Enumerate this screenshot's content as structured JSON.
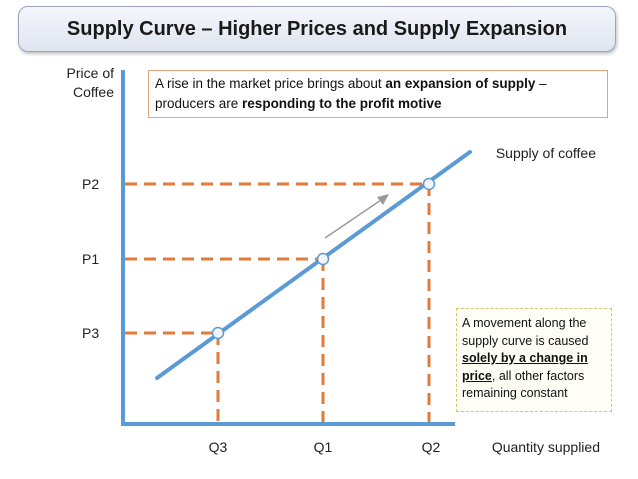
{
  "title": "Supply Curve – Higher Prices and Supply Expansion",
  "y_axis_label_line1": "Price of",
  "y_axis_label_line2": "Coffee",
  "x_axis_label": "Quantity supplied",
  "curve_label": "Supply of coffee",
  "top_note": {
    "part1": "A rise in the market price brings about ",
    "bold1": "an expansion of supply",
    "part2": " – producers are ",
    "bold2": "responding to the profit motive"
  },
  "side_note": {
    "part1": "A movement along the supply curve is caused ",
    "bold_underlined": "solely by a change in price",
    "part2": ", all other factors remaining constant"
  },
  "price_labels": {
    "p2": "P2",
    "p1": "P1",
    "p3": "P3"
  },
  "quantity_labels": {
    "q3": "Q3",
    "q1": "Q1",
    "q2": "Q2"
  },
  "colors": {
    "axis": "#5b9bd5",
    "curve": "#5b9bd5",
    "guide": "#e07b39",
    "arrow": "#999999"
  }
}
